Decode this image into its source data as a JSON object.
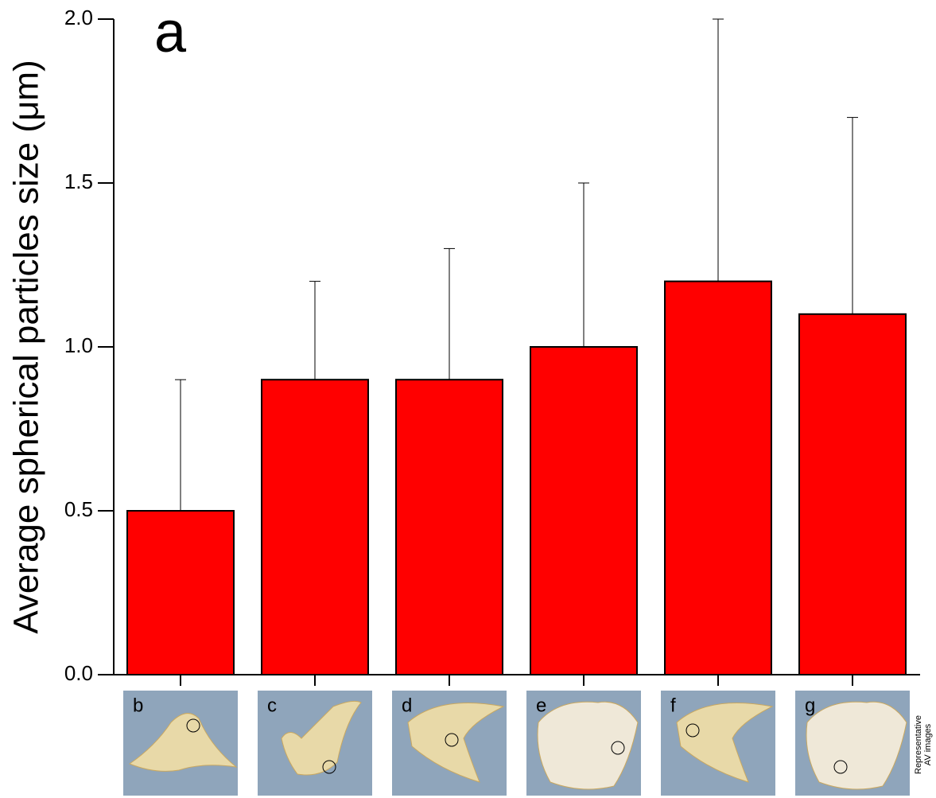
{
  "chart_data": {
    "type": "bar",
    "annotation": "a",
    "ylabel": "Average spherical particles size (μm)",
    "categories": [
      "b",
      "c",
      "d",
      "e",
      "f",
      "g"
    ],
    "values": [
      0.5,
      0.9,
      0.9,
      1.0,
      1.2,
      1.1
    ],
    "errors": [
      0.4,
      0.3,
      0.4,
      0.5,
      0.8,
      0.6
    ],
    "color": "#ff0000",
    "ylim": [
      0,
      2.0
    ],
    "yticks": [
      {
        "value": 0,
        "label": "0.0"
      },
      0.5,
      {
        "value": 1,
        "label": "1.0"
      },
      1.5,
      {
        "value": 2,
        "label": "2.0"
      }
    ],
    "side_label": [
      "Representative",
      "AV images"
    ]
  }
}
